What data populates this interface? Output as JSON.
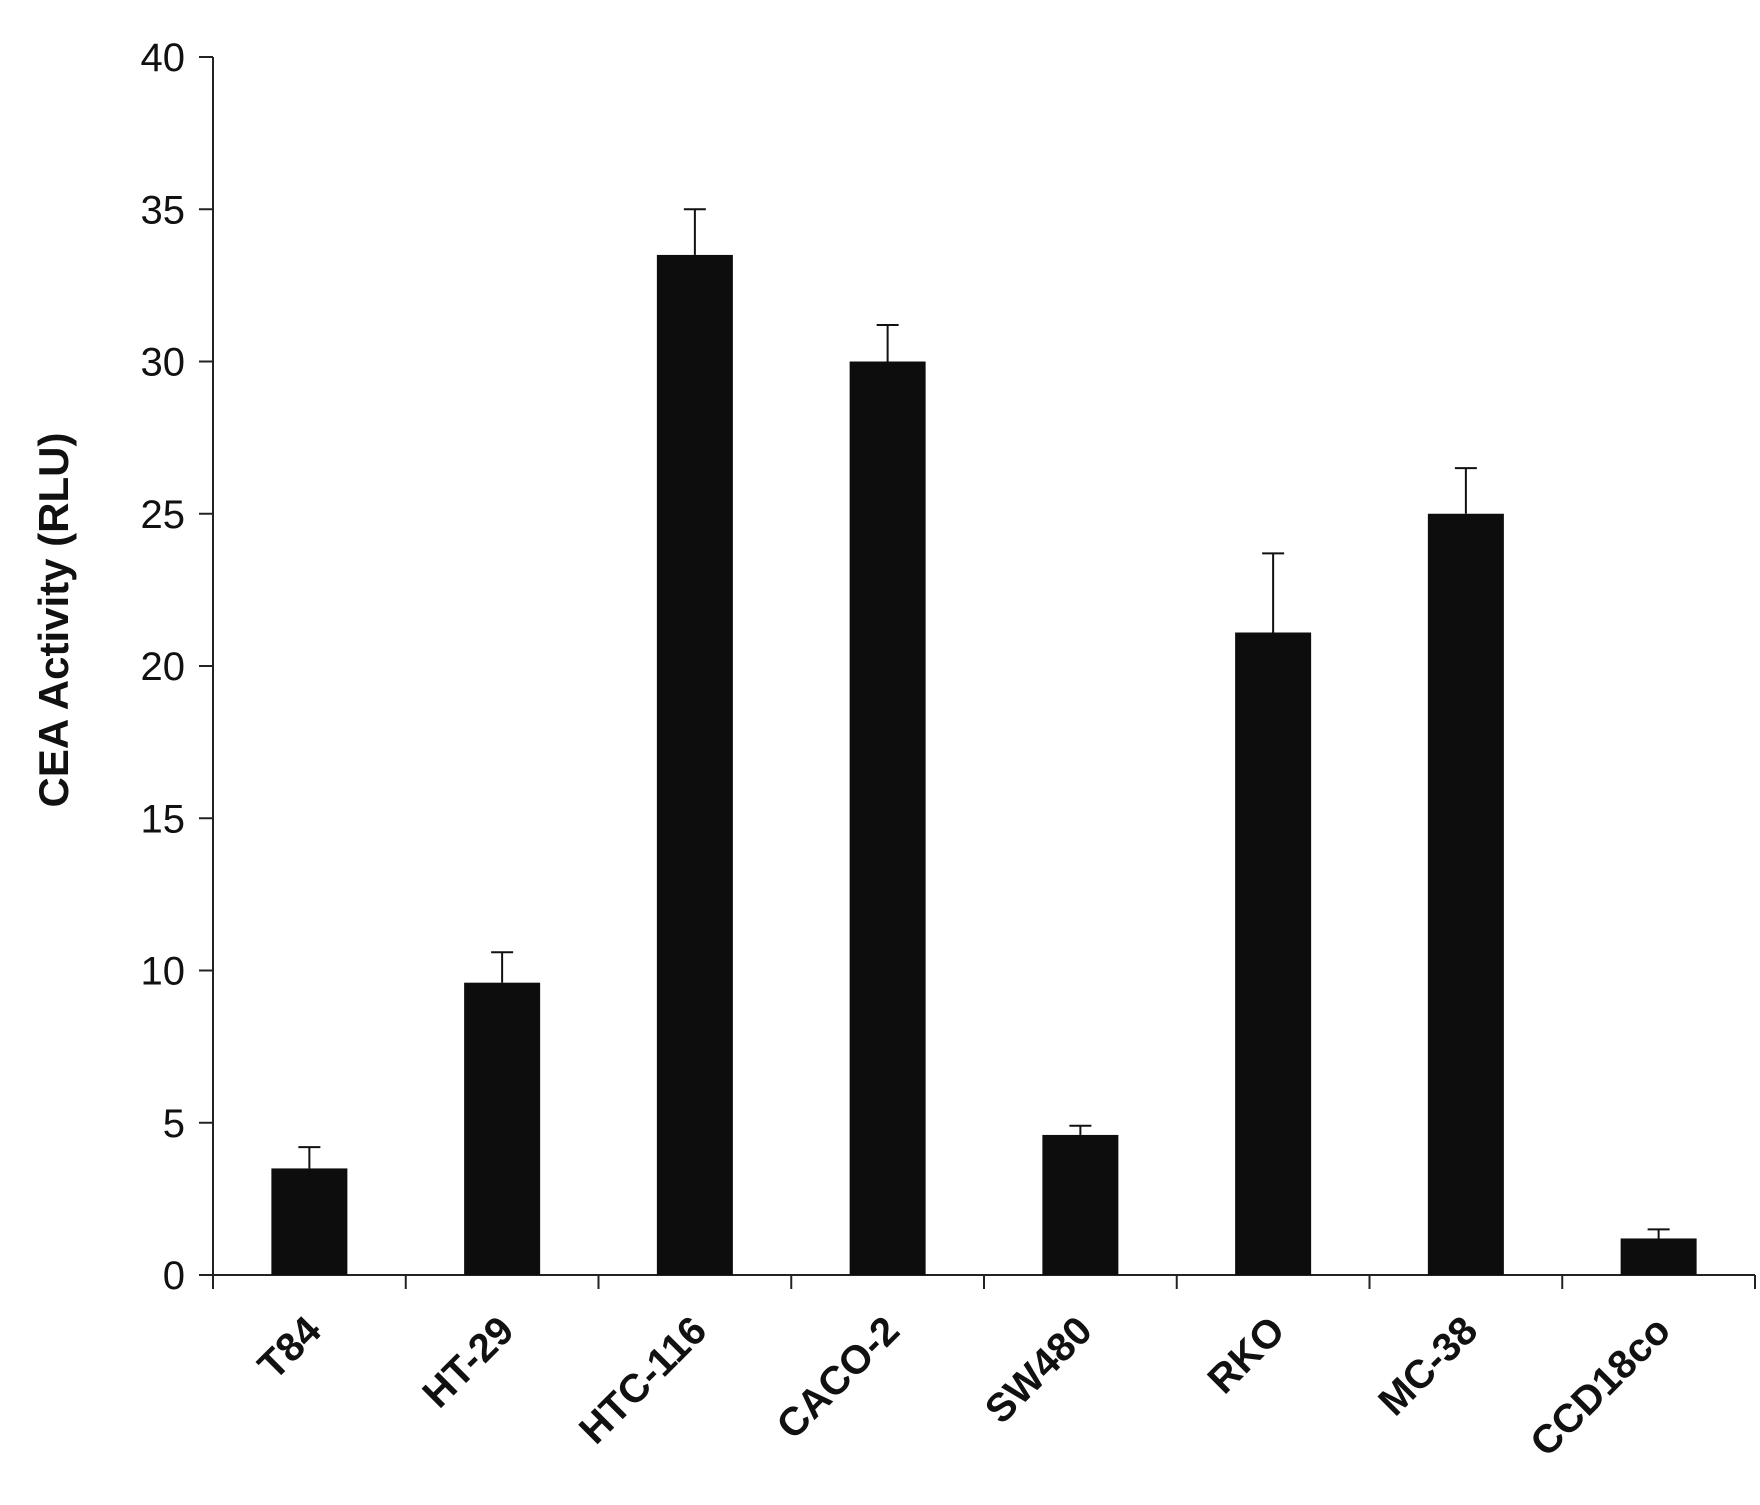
{
  "chart_data": {
    "type": "bar",
    "title": "",
    "xlabel": "",
    "ylabel": "CEA Activity (RLU)",
    "categories": [
      "T84",
      "HT-29",
      "HTC-116",
      "CACO-2",
      "SW480",
      "RKO",
      "MC-38",
      "CCD18co"
    ],
    "values": [
      3.5,
      9.6,
      33.5,
      30.0,
      4.6,
      21.1,
      25.0,
      1.2
    ],
    "error_upper": [
      0.7,
      1.0,
      1.5,
      1.2,
      0.3,
      2.6,
      1.5,
      0.3
    ],
    "ylim": [
      0,
      40
    ],
    "yticks": [
      "0",
      "5",
      "10",
      "15",
      "20",
      "25",
      "30",
      "35",
      "40"
    ],
    "grid": false,
    "legend": "none",
    "bar_color": "#0d0d0d"
  }
}
